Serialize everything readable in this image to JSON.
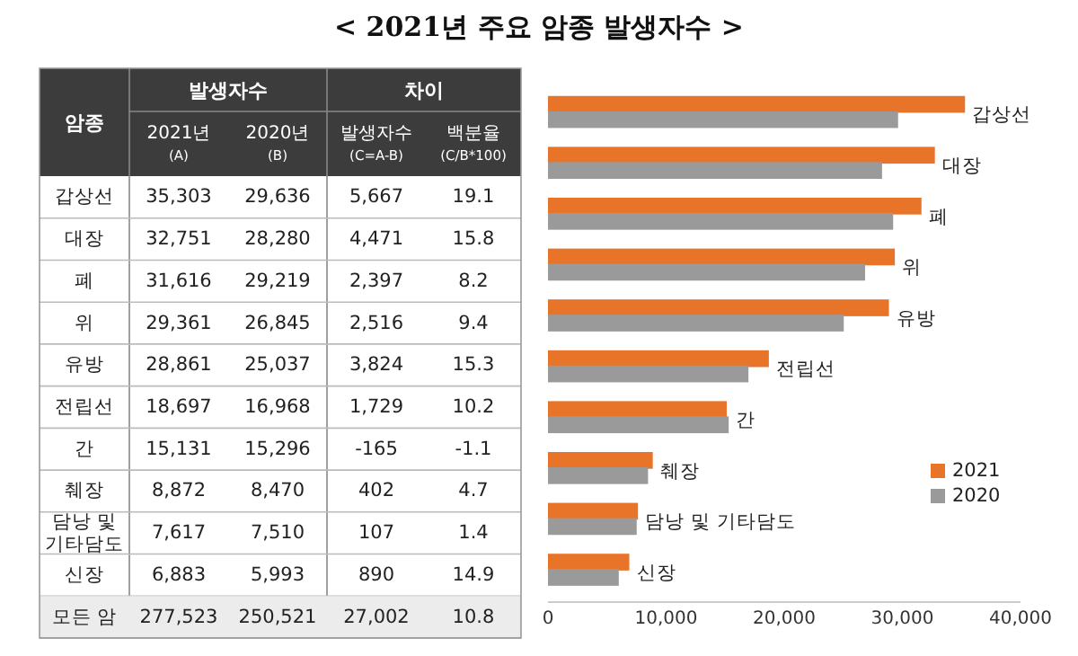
{
  "chart_data": [
    {
      "type": "other",
      "annotations": [
        "암종",
        "발생자수",
        "차이"
      ],
      "categories": [
        "갑상선",
        "대장",
        "폐",
        "위",
        "유방",
        "전립선",
        "간",
        "췌장",
        "담낭 및 기타담도",
        "신장",
        "모든 암"
      ],
      "series": [
        {
          "name": "2021년$_{(A)}$",
          "values": [
            35303,
            32751,
            31616,
            29361,
            28861,
            18697,
            15131,
            8872,
            7617,
            6883,
            277523
          ],
          "value_labels": [
            "35,303",
            "32,751",
            "31,616",
            "29,361",
            "28,861",
            "18,697",
            "15,131",
            "8,872",
            "7,617",
            "6,883",
            "277,523"
          ]
        },
        {
          "name": "2020년$_{(B)}$",
          "values": [
            29636,
            28280,
            29219,
            26845,
            25037,
            16968,
            15296,
            8470,
            7510,
            5993,
            250521
          ],
          "value_labels": [
            "29,636",
            "28,280",
            "29,219",
            "26,845",
            "25,037",
            "16,968",
            "15,296",
            "8,470",
            "7,510",
            "5,993",
            "250,521"
          ]
        },
        {
          "name": "발생자수$_{(C=A-B)}$",
          "values": [
            5667,
            4471,
            2397,
            2516,
            3824,
            1729,
            -165,
            402,
            107,
            890,
            27002
          ],
          "value_labels": [
            "5,667",
            "4,471",
            "2,397",
            "2,516",
            "3,824",
            "1,729",
            "-165",
            "402",
            "107",
            "890",
            "27,002"
          ]
        },
        {
          "name": "백분율$_{(C/B*100)}$",
          "values": [
            19.1,
            15.8,
            8.2,
            9.4,
            15.3,
            10.2,
            -1.1,
            4.7,
            1.4,
            14.9,
            10.8
          ],
          "value_labels": [
            "19.1",
            "15.8",
            "8.2",
            "9.4",
            "15.3",
            "10.2",
            "-1.1",
            "4.7",
            "1.4",
            "14.9",
            "10.8"
          ]
        }
      ]
    },
    {
      "type": "bar",
      "orientation": "horizontal",
      "title": "< 2021년 주요 암종 발생자수 >",
      "categories": [
        "갑상선",
        "대장",
        "폐",
        "위",
        "유방",
        "전립선",
        "간",
        "췌장",
        "담낭 및 기타담도",
        "신장"
      ],
      "series": [
        {
          "name": "2021",
          "color": "#e8742a",
          "values": [
            35303,
            32751,
            31616,
            29361,
            28861,
            18697,
            15131,
            8872,
            7617,
            6883
          ]
        },
        {
          "name": "2020",
          "color": "#9a9a9a",
          "values": [
            29636,
            28280,
            29219,
            26845,
            25037,
            16968,
            15296,
            8470,
            7510,
            5993
          ]
        }
      ],
      "xlim": [
        0,
        40000
      ],
      "xticks": [
        {
          "value": 0,
          "label": "0"
        },
        {
          "value": 10000,
          "label": "10,000"
        },
        {
          "value": 20000,
          "label": "20,000"
        },
        {
          "value": 30000,
          "label": "30,000"
        },
        {
          "value": 40000,
          "label": "40,000"
        }
      ],
      "legend": "right",
      "grid": false
    }
  ]
}
